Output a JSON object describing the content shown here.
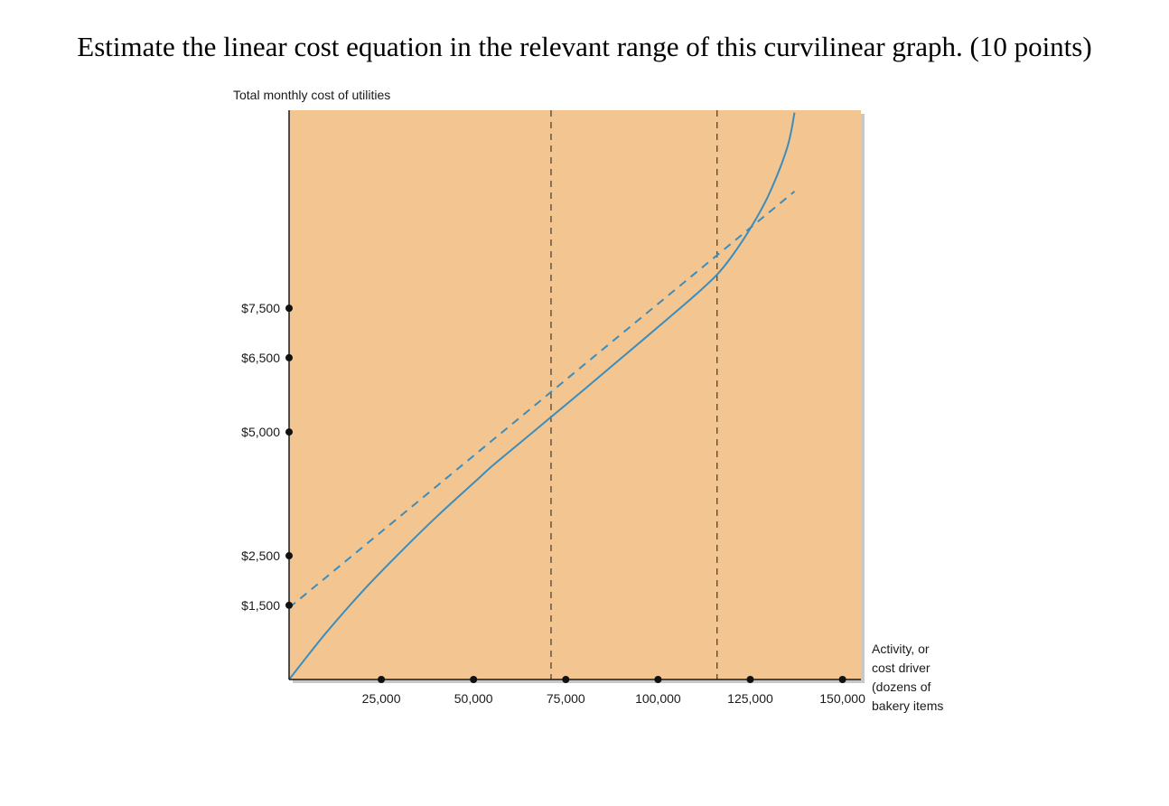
{
  "question": "Estimate the linear cost equation in the relevant range of this curvilinear graph. (10 points)",
  "chart_data": {
    "type": "line",
    "ylabel": "Total monthly cost of utilities",
    "xlabel_lines": [
      "Activity, or",
      "cost driver",
      "(dozens of",
      "bakery items"
    ],
    "xlim": [
      0,
      155000
    ],
    "ylim": [
      0,
      11500
    ],
    "x_ticks": [
      {
        "value": 25000,
        "label": "25,000"
      },
      {
        "value": 50000,
        "label": "50,000"
      },
      {
        "value": 75000,
        "label": "75,000"
      },
      {
        "value": 100000,
        "label": "100,000"
      },
      {
        "value": 125000,
        "label": "125,000"
      },
      {
        "value": 150000,
        "label": "150,000"
      }
    ],
    "y_ticks": [
      {
        "value": 1500,
        "label": "$1,500"
      },
      {
        "value": 2500,
        "label": "$2,500"
      },
      {
        "value": 5000,
        "label": "$5,000"
      },
      {
        "value": 6500,
        "label": "$6,500"
      },
      {
        "value": 7500,
        "label": "$7,500"
      }
    ],
    "relevant_range_bounds": [
      71000,
      116000
    ],
    "series": [
      {
        "style": "solid",
        "x": [
          0,
          10000,
          20000,
          30000,
          40000,
          50000,
          55000,
          60000,
          70000,
          80000,
          90000,
          100000,
          110000,
          116000,
          120000,
          125000,
          130000,
          135000,
          137000
        ],
        "y": [
          0,
          940,
          1790,
          2560,
          3290,
          3970,
          4310,
          4620,
          5240,
          5860,
          6490,
          7120,
          7760,
          8180,
          8550,
          9110,
          9790,
          10740,
          11450
        ]
      },
      {
        "style": "dashed",
        "x": [
          0,
          137000
        ],
        "y": [
          1450,
          9860
        ]
      }
    ],
    "colors": {
      "background": "#f3c591",
      "line": "#3b8dbd",
      "axis": "#1a1a1a",
      "shadow": "#c8c8c8"
    },
    "grid": false
  }
}
